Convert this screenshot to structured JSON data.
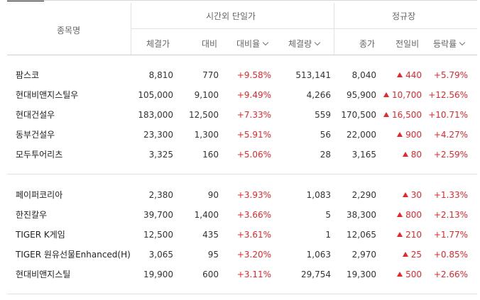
{
  "header": {
    "group_name": "종목명",
    "group_afterhours": "시간외 단일가",
    "group_regular": "정규장",
    "columns": {
      "ah_price": "체결가",
      "ah_change": "대비",
      "ah_rate": "대비율",
      "ah_volume": "체결량",
      "close": "종가",
      "prev_change": "전일비",
      "change_rate": "등락률"
    }
  },
  "colors": {
    "up": "#e8262a"
  },
  "groups": [
    {
      "rows": [
        {
          "name": "팜스코",
          "ah_price": "8,810",
          "ah_change": "770",
          "ah_rate": "+9.58%",
          "ah_volume": "513,141",
          "close": "8,040",
          "prev_change": "440",
          "change_rate": "+5.79%"
        },
        {
          "name": "현대비앤지스틸우",
          "ah_price": "105,000",
          "ah_change": "9,100",
          "ah_rate": "+9.49%",
          "ah_volume": "4,266",
          "close": "95,900",
          "prev_change": "10,700",
          "change_rate": "+12.56%"
        },
        {
          "name": "현대건설우",
          "ah_price": "183,000",
          "ah_change": "12,500",
          "ah_rate": "+7.33%",
          "ah_volume": "559",
          "close": "170,500",
          "prev_change": "16,500",
          "change_rate": "+10.71%"
        },
        {
          "name": "동부건설우",
          "ah_price": "23,300",
          "ah_change": "1,300",
          "ah_rate": "+5.91%",
          "ah_volume": "56",
          "close": "22,000",
          "prev_change": "900",
          "change_rate": "+4.27%"
        },
        {
          "name": "모두투어리츠",
          "ah_price": "3,325",
          "ah_change": "160",
          "ah_rate": "+5.06%",
          "ah_volume": "28",
          "close": "3,165",
          "prev_change": "80",
          "change_rate": "+2.59%"
        }
      ]
    },
    {
      "rows": [
        {
          "name": "페이퍼코리아",
          "ah_price": "2,380",
          "ah_change": "90",
          "ah_rate": "+3.93%",
          "ah_volume": "1,083",
          "close": "2,290",
          "prev_change": "30",
          "change_rate": "+1.33%"
        },
        {
          "name": "한진칼우",
          "ah_price": "39,700",
          "ah_change": "1,400",
          "ah_rate": "+3.66%",
          "ah_volume": "5",
          "close": "38,300",
          "prev_change": "800",
          "change_rate": "+2.13%"
        },
        {
          "name": "TIGER K게임",
          "ah_price": "12,500",
          "ah_change": "435",
          "ah_rate": "+3.61%",
          "ah_volume": "1",
          "close": "12,065",
          "prev_change": "210",
          "change_rate": "+1.77%"
        },
        {
          "name": "TIGER 원유선물Enhanced(H)",
          "ah_price": "3,065",
          "ah_change": "95",
          "ah_rate": "+3.20%",
          "ah_volume": "1,063",
          "close": "2,970",
          "prev_change": "25",
          "change_rate": "+0.85%"
        },
        {
          "name": "현대비앤지스틸",
          "ah_price": "19,900",
          "ah_change": "600",
          "ah_rate": "+3.11%",
          "ah_volume": "29,754",
          "close": "19,300",
          "prev_change": "500",
          "change_rate": "+2.66%"
        }
      ]
    }
  ]
}
